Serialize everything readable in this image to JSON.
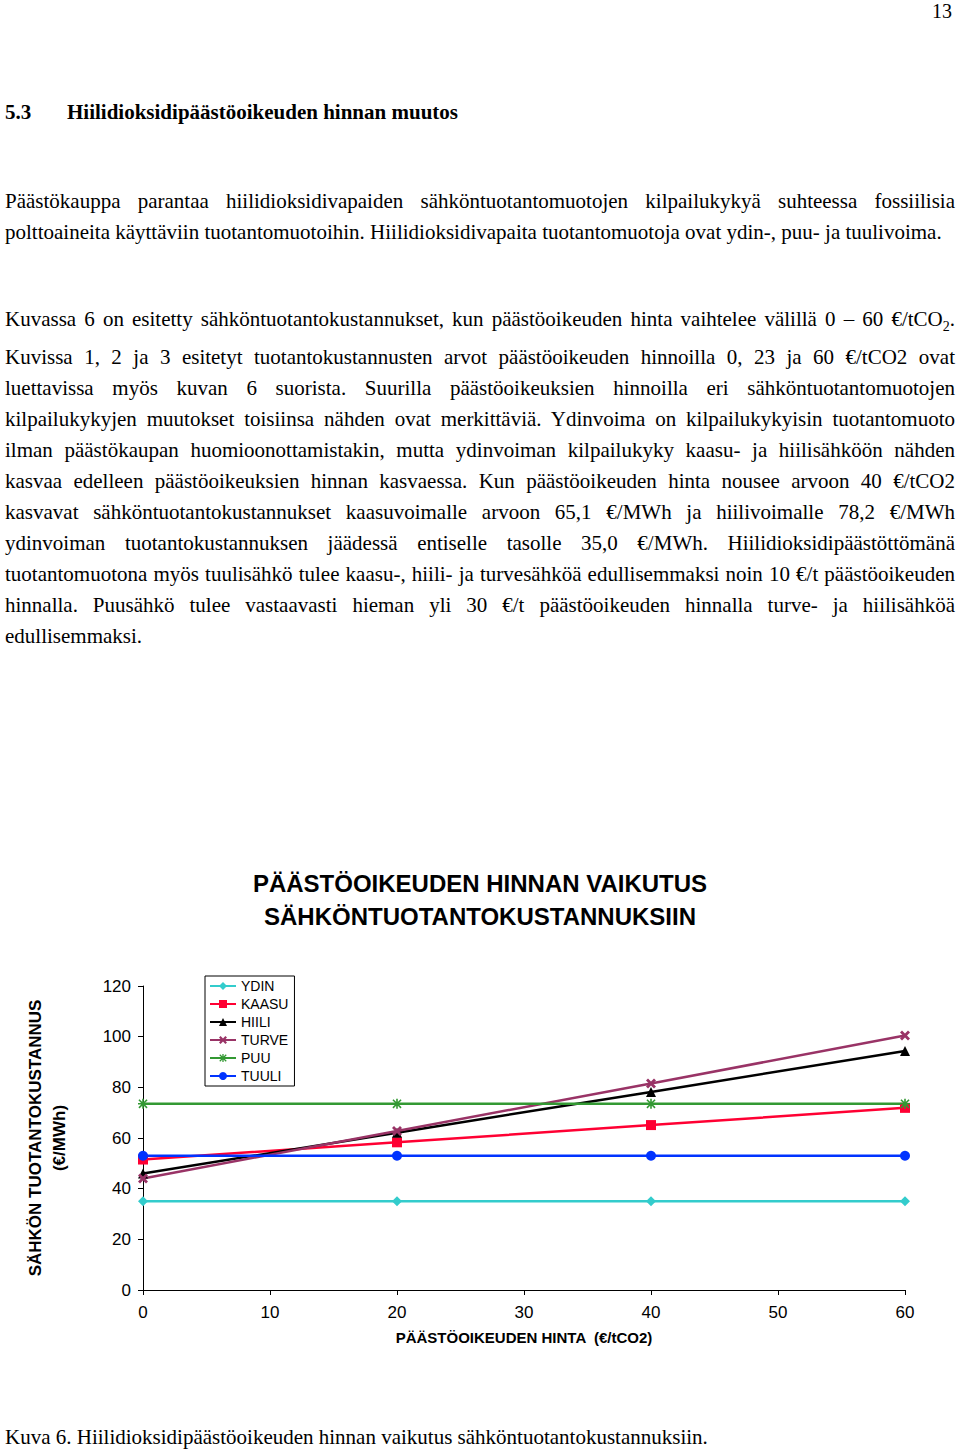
{
  "page_number": "13",
  "heading": {
    "number": "5.3",
    "title": "Hiilidioksidipäästöoikeuden hinnan muutos"
  },
  "paragraphs": [
    [
      {
        "text": "Päästökauppa parantaa hiilidioksidivapaiden sähköntuotantomuotojen kilpailukykyä suhteessa fossiilisia polttoaineita käyttäviin tuotantomuotoihin. Hiilidioksidivapaita tuotantomuotoja ovat ydin-, puu- ja tuulivoima."
      }
    ],
    [
      {
        "text": "Kuvassa 6 on esitetty sähköntuotantokustannukset, kun päästöoikeuden hinta vaihtelee välillä 0 – 60 €/tCO"
      },
      {
        "sub": "2"
      },
      {
        "text": ". Kuvissa 1, 2 ja 3 esitetyt tuotantokustannusten arvot päästöoikeuden hinnoilla 0, 23 ja 60 €/tCO2 ovat luettavissa myös kuvan 6 suorista. Suurilla päästöoikeuksien hinnoilla eri sähköntuotantomuotojen kilpailukykyjen muutokset toisiinsa nähden ovat merkittäviä. Ydinvoima on kilpailukykyisin tuotantomuoto ilman päästökaupan huomioonottamistakin, mutta ydinvoiman kilpailukyky kaasu- ja hiilisähköön nähden kasvaa edelleen päästöoikeuksien hinnan kasvaessa. Kun päästöoikeuden hinta nousee arvoon 40 €/tCO2 kasvavat sähköntuotantokustannukset kaasuvoimalle arvoon 65,1 €/MWh ja hiilivoimalle 78,2 €/MWh ydinvoiman tuotantokustannuksen jäädessä entiselle tasolle 35,0 €/MWh. Hiilidioksidipäästöttömänä tuotantomuotona myös tuulisähkö tulee kaasu-, hiili- ja turvesähköä edullisemmaksi noin 10 €/t päästöoikeuden hinnalla. Puusähkö tulee vastaavasti hieman yli 30 €/t päästöoikeuden hinnalla turve- ja hiilisähköä edullisemmaksi."
      }
    ]
  ],
  "chart_data": {
    "type": "line",
    "title": "PÄÄSTÖOIKEUDEN HINNAN VAIKUTUS\nSÄHKÖNTUOTANTOKUSTANNUKSIIN",
    "xlabel": "PÄÄSTÖOIKEUDEN HINTA  (€/tCO2)",
    "ylabel": "SÄHKÖN TUOTANTOKUSTANNUS (€/MWh)",
    "x": [
      0,
      20,
      40,
      60
    ],
    "xlim": [
      0,
      60
    ],
    "xticks": [
      0,
      10,
      20,
      30,
      40,
      50,
      60
    ],
    "ylim": [
      0,
      120
    ],
    "yticks": [
      0,
      20,
      40,
      60,
      80,
      100,
      120
    ],
    "grid": false,
    "legend": "upper left",
    "series": [
      {
        "name": "YDIN",
        "color": "#33cccc",
        "marker": "diamond",
        "values": [
          35.0,
          35.0,
          35.0,
          35.0
        ]
      },
      {
        "name": "KAASU",
        "color": "#ff0033",
        "marker": "square",
        "values": [
          51.5,
          58.3,
          65.1,
          71.9
        ]
      },
      {
        "name": "HIILI",
        "color": "#000000",
        "marker": "triangle",
        "values": [
          46.0,
          62.1,
          78.2,
          94.3
        ]
      },
      {
        "name": "TURVE",
        "color": "#993366",
        "marker": "x",
        "values": [
          44.0,
          62.8,
          81.5,
          100.5
        ]
      },
      {
        "name": "PUU",
        "color": "#339933",
        "marker": "asterisk",
        "values": [
          73.5,
          73.5,
          73.5,
          73.5
        ]
      },
      {
        "name": "TUULI",
        "color": "#0033ff",
        "marker": "circle",
        "values": [
          53.0,
          53.0,
          53.0,
          53.0
        ]
      }
    ]
  },
  "caption": "Kuva 6. Hiilidioksidipäästöoikeuden hinnan vaikutus sähköntuotantokustannuksiin."
}
